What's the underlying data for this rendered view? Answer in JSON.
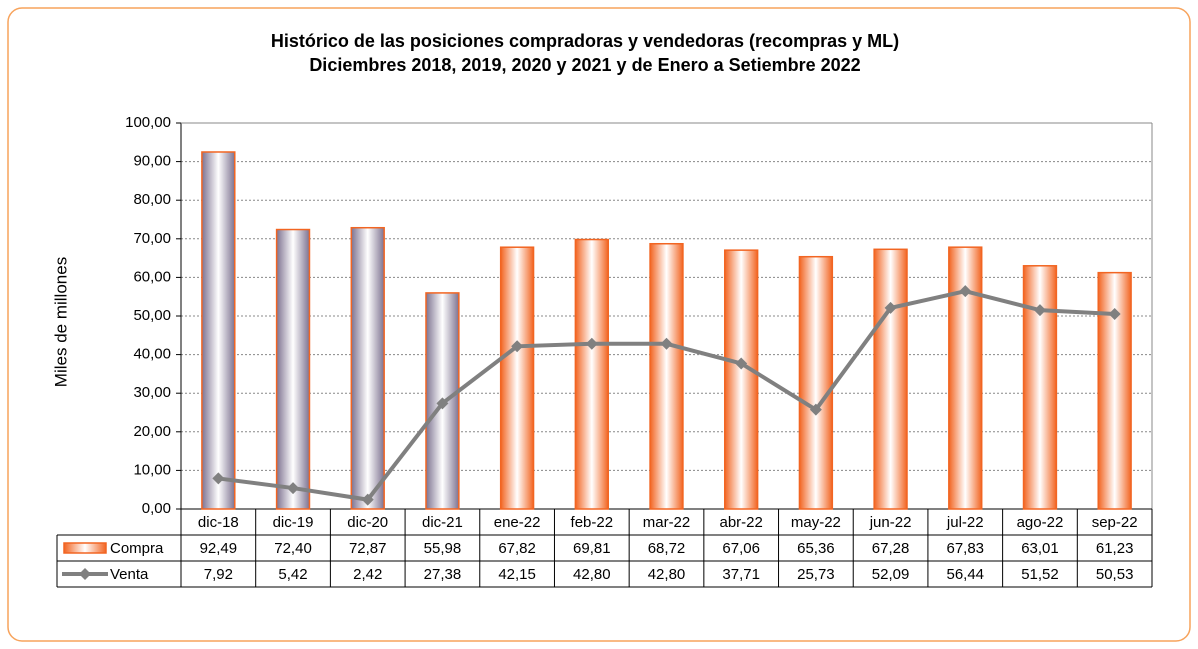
{
  "chart_data": {
    "type": "bar",
    "title": "Histórico de las posiciones compradoras y vendedoras (recompras y ML)",
    "subtitle": "Diciembres 2018, 2019, 2020 y 2021 y de Enero a Setiembre 2022",
    "y_label": "Miles de millones",
    "categories": [
      "dic-18",
      "dic-19",
      "dic-20",
      "dic-21",
      "ene-22",
      "feb-22",
      "mar-22",
      "abr-22",
      "may-22",
      "jun-22",
      "jul-22",
      "ago-22",
      "sep-22"
    ],
    "series": [
      {
        "name": "Compra",
        "type": "bar",
        "color": "#f26522",
        "colors": [
          "#7d7290",
          "#7d7290",
          "#7d7290",
          "#7d7290",
          "#f26522",
          "#f26522",
          "#f26522",
          "#f26522",
          "#f26522",
          "#f26522",
          "#f26522",
          "#f26522",
          "#f26522"
        ],
        "values": [
          92.49,
          72.4,
          72.87,
          55.98,
          67.82,
          69.81,
          68.72,
          67.06,
          65.36,
          67.28,
          67.83,
          63.01,
          61.23
        ],
        "value_labels": [
          "92,49",
          "72,40",
          "72,87",
          "55,98",
          "67,82",
          "69,81",
          "68,72",
          "67,06",
          "65,36",
          "67,28",
          "67,83",
          "63,01",
          "61,23"
        ]
      },
      {
        "name": "Venta",
        "type": "line",
        "color": "#808080",
        "values": [
          7.92,
          5.42,
          2.42,
          27.38,
          42.15,
          42.8,
          42.8,
          37.71,
          25.73,
          52.09,
          56.44,
          51.52,
          50.53
        ],
        "value_labels": [
          "7,92",
          "5,42",
          "2,42",
          "27,38",
          "42,15",
          "42,80",
          "42,80",
          "37,71",
          "25,73",
          "52,09",
          "56,44",
          "51,52",
          "50,53"
        ]
      }
    ],
    "ylim": [
      0,
      100
    ],
    "yticks": [
      {
        "value": 0,
        "label": "0,00"
      },
      {
        "value": 10,
        "label": "10,00"
      },
      {
        "value": 20,
        "label": "20,00"
      },
      {
        "value": 30,
        "label": "30,00"
      },
      {
        "value": 40,
        "label": "40,00"
      },
      {
        "value": 50,
        "label": "50,00"
      },
      {
        "value": 60,
        "label": "60,00"
      },
      {
        "value": 70,
        "label": "70,00"
      },
      {
        "value": 80,
        "label": "80,00"
      },
      {
        "value": 90,
        "label": "90,00"
      },
      {
        "value": 100,
        "label": "100,00"
      }
    ],
    "grid": true
  }
}
